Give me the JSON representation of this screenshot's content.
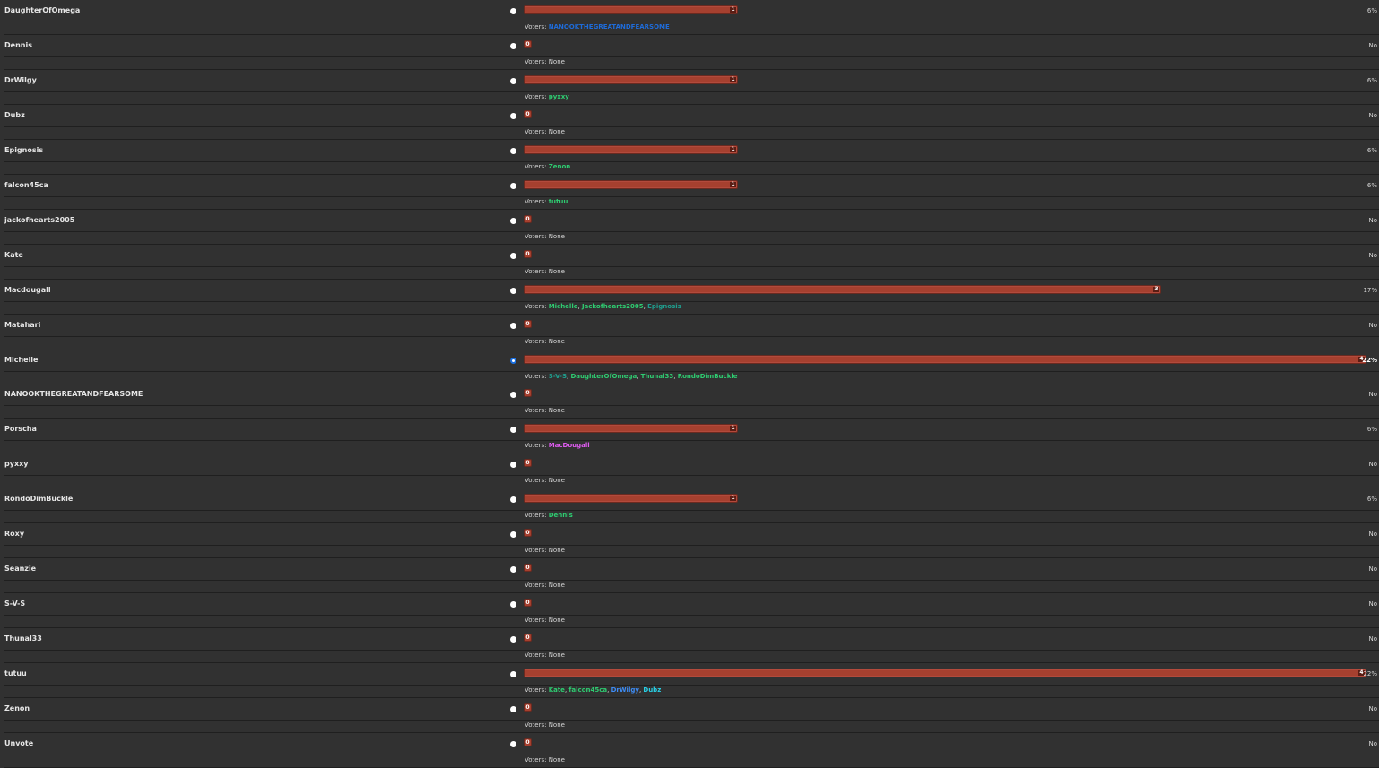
{
  "colors": {
    "background": "#313131",
    "bar": "#a6402f",
    "voter_green": "#2ecc71",
    "voter_blue": "#1e6bd9",
    "voter_teal": "#1f9e8e",
    "voter_pink": "#e05cf2",
    "voter_cyan": "#28d0e6",
    "voter_lightblue": "#3d8cf5"
  },
  "poll": {
    "voters_label": "Voters:",
    "none_label": "None",
    "options": [
      {
        "name": "DaughterOfOmega",
        "votes": 1,
        "fraction": 0.254,
        "pct": "6%",
        "selected": false,
        "voters": [
          {
            "name": "NANOOKTHEGREATANDFEARSOME",
            "color": "#1e6bd9"
          }
        ]
      },
      {
        "name": "Dennis",
        "votes": 0,
        "fraction": 0,
        "pct": "No",
        "selected": false,
        "voters": []
      },
      {
        "name": "DrWilgy",
        "votes": 1,
        "fraction": 0.254,
        "pct": "6%",
        "selected": false,
        "voters": [
          {
            "name": "pyxxy",
            "color": "#2ecc71"
          }
        ]
      },
      {
        "name": "Dubz",
        "votes": 0,
        "fraction": 0,
        "pct": "No",
        "selected": false,
        "voters": []
      },
      {
        "name": "Epignosis",
        "votes": 1,
        "fraction": 0.254,
        "pct": "6%",
        "selected": false,
        "voters": [
          {
            "name": "Zenon",
            "color": "#2ecc71"
          }
        ]
      },
      {
        "name": "falcon45ca",
        "votes": 1,
        "fraction": 0.254,
        "pct": "6%",
        "selected": false,
        "voters": [
          {
            "name": "tutuu",
            "color": "#2ecc71"
          }
        ]
      },
      {
        "name": "jackofhearts2005",
        "votes": 0,
        "fraction": 0,
        "pct": "No",
        "selected": false,
        "voters": []
      },
      {
        "name": "Kate",
        "votes": 0,
        "fraction": 0,
        "pct": "No",
        "selected": false,
        "voters": []
      },
      {
        "name": "Macdougall",
        "votes": 3,
        "fraction": 0.756,
        "pct": "17%",
        "selected": false,
        "voters": [
          {
            "name": "Michelle",
            "color": "#2ecc71"
          },
          {
            "name": "Jackofhearts2005",
            "color": "#2ecc71"
          },
          {
            "name": "Epignosis",
            "color": "#1f9e8e"
          }
        ]
      },
      {
        "name": "Matahari",
        "votes": 0,
        "fraction": 0,
        "pct": "No",
        "selected": false,
        "voters": []
      },
      {
        "name": "Michelle",
        "votes": 4,
        "fraction": 1.0,
        "pct": "22%",
        "selected": true,
        "voters": [
          {
            "name": "S-V-S",
            "color": "#1f9e8e"
          },
          {
            "name": "DaughterOfOmega",
            "color": "#2ecc71"
          },
          {
            "name": "Thunal33",
            "color": "#2ecc71"
          },
          {
            "name": "RondoDimBuckle",
            "color": "#2ecc71"
          }
        ]
      },
      {
        "name": "NANOOKTHEGREATANDFEARSOME",
        "votes": 0,
        "fraction": 0,
        "pct": "No",
        "selected": false,
        "voters": []
      },
      {
        "name": "Porscha",
        "votes": 1,
        "fraction": 0.254,
        "pct": "6%",
        "selected": false,
        "voters": [
          {
            "name": "MacDougall",
            "color": "#e05cf2"
          }
        ]
      },
      {
        "name": "pyxxy",
        "votes": 0,
        "fraction": 0,
        "pct": "No",
        "selected": false,
        "voters": []
      },
      {
        "name": "RondoDimBuckle",
        "votes": 1,
        "fraction": 0.254,
        "pct": "6%",
        "selected": false,
        "voters": [
          {
            "name": "Dennis",
            "color": "#2ecc71"
          }
        ]
      },
      {
        "name": "Roxy",
        "votes": 0,
        "fraction": 0,
        "pct": "No",
        "selected": false,
        "voters": []
      },
      {
        "name": "Seanzie",
        "votes": 0,
        "fraction": 0,
        "pct": "No",
        "selected": false,
        "voters": []
      },
      {
        "name": "S-V-S",
        "votes": 0,
        "fraction": 0,
        "pct": "No",
        "selected": false,
        "voters": []
      },
      {
        "name": "Thunal33",
        "votes": 0,
        "fraction": 0,
        "pct": "No",
        "selected": false,
        "voters": []
      },
      {
        "name": "tutuu",
        "votes": 4,
        "fraction": 1.0,
        "pct": "22%",
        "selected": false,
        "voters": [
          {
            "name": "Kate",
            "color": "#2ecc71"
          },
          {
            "name": "falcon45ca",
            "color": "#2ecc71"
          },
          {
            "name": "DrWilgy",
            "color": "#3d8cf5"
          },
          {
            "name": "Dubz",
            "color": "#28d0e6"
          }
        ]
      },
      {
        "name": "Zenon",
        "votes": 0,
        "fraction": 0,
        "pct": "No",
        "selected": false,
        "voters": []
      },
      {
        "name": "Unvote",
        "votes": 0,
        "fraction": 0,
        "pct": "No",
        "selected": false,
        "voters": []
      }
    ]
  }
}
